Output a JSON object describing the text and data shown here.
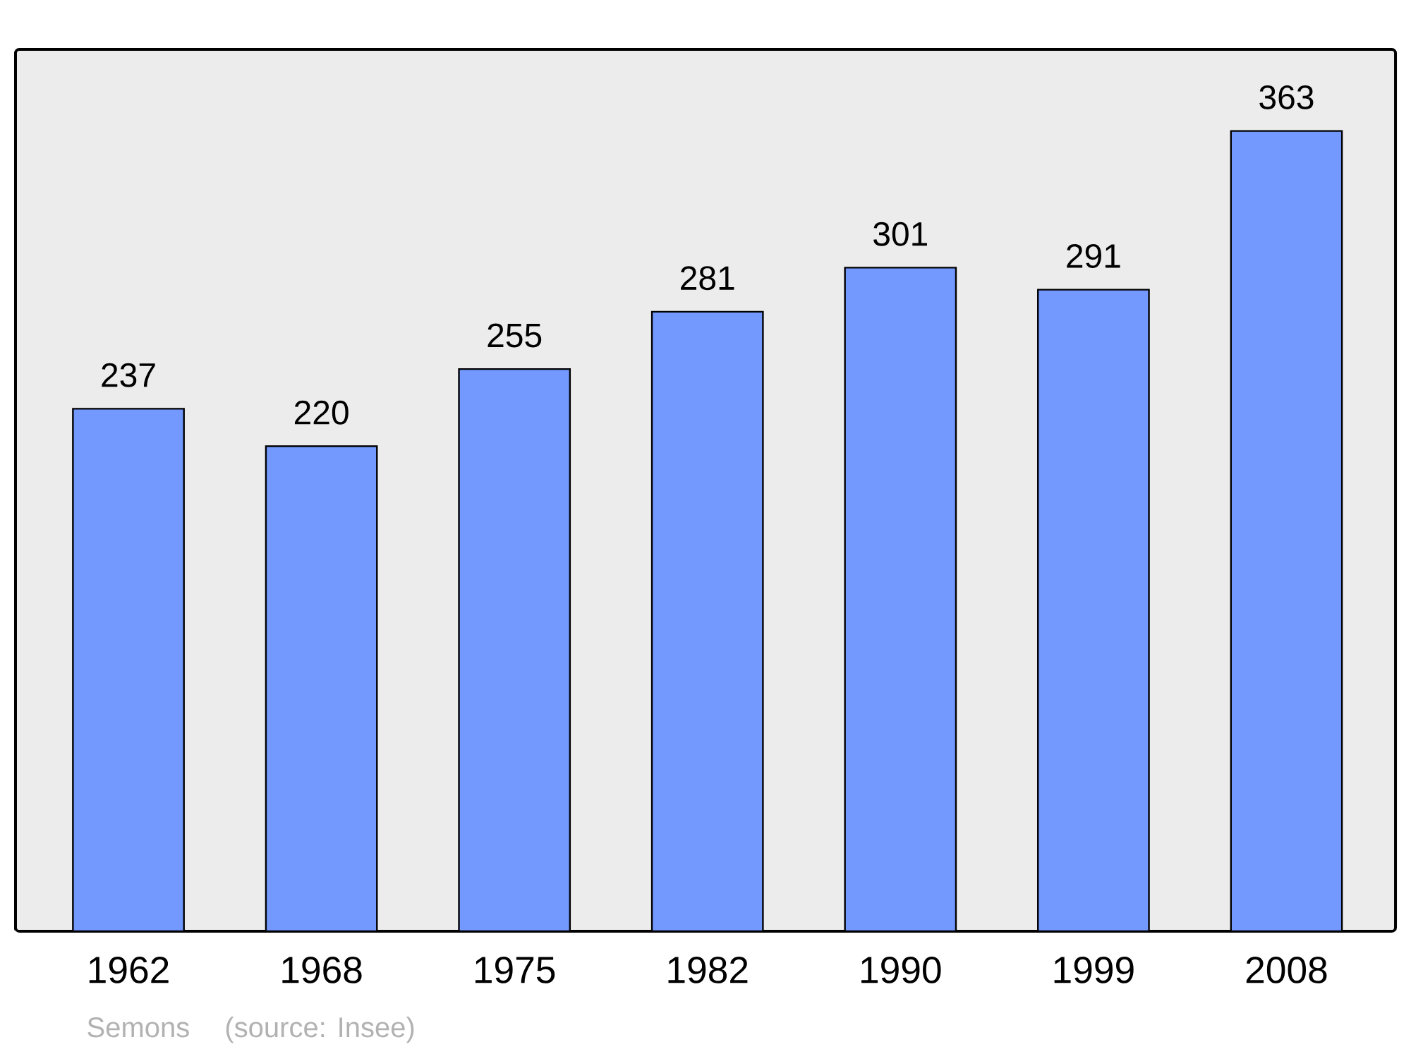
{
  "chart_data": {
    "type": "bar",
    "categories": [
      "1962",
      "1968",
      "1975",
      "1982",
      "1990",
      "1999",
      "2008"
    ],
    "values": [
      237,
      220,
      255,
      281,
      301,
      291,
      363
    ],
    "color": "#7399ff",
    "ylim": [
      0,
      400
    ],
    "data_labels": true,
    "annotations": [
      "Semons",
      "(source: Insee)"
    ]
  }
}
